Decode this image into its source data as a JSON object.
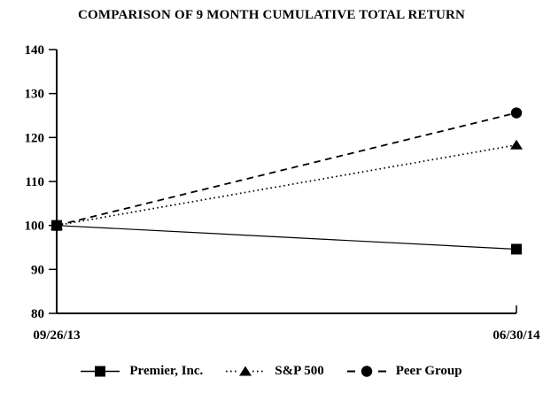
{
  "chart_data": {
    "type": "line",
    "title": "COMPARISON OF 9 MONTH CUMULATIVE TOTAL RETURN",
    "categories": [
      "09/26/13",
      "06/30/14"
    ],
    "series": [
      {
        "name": "Premier, Inc.",
        "values": [
          100,
          94.6
        ],
        "marker": "square",
        "line_style": "solid"
      },
      {
        "name": "S&P 500",
        "values": [
          100,
          118.3
        ],
        "marker": "triangle",
        "line_style": "dotted"
      },
      {
        "name": "Peer Group",
        "values": [
          100,
          125.6
        ],
        "marker": "circle",
        "line_style": "dashed"
      }
    ],
    "ylim": [
      80,
      140
    ],
    "yticks": [
      80,
      90,
      100,
      110,
      120,
      130,
      140
    ],
    "xlabel": "",
    "ylabel": "",
    "grid": false,
    "legend_position": "bottom",
    "colors": {
      "foreground": "#000000",
      "background": "#ffffff"
    }
  }
}
